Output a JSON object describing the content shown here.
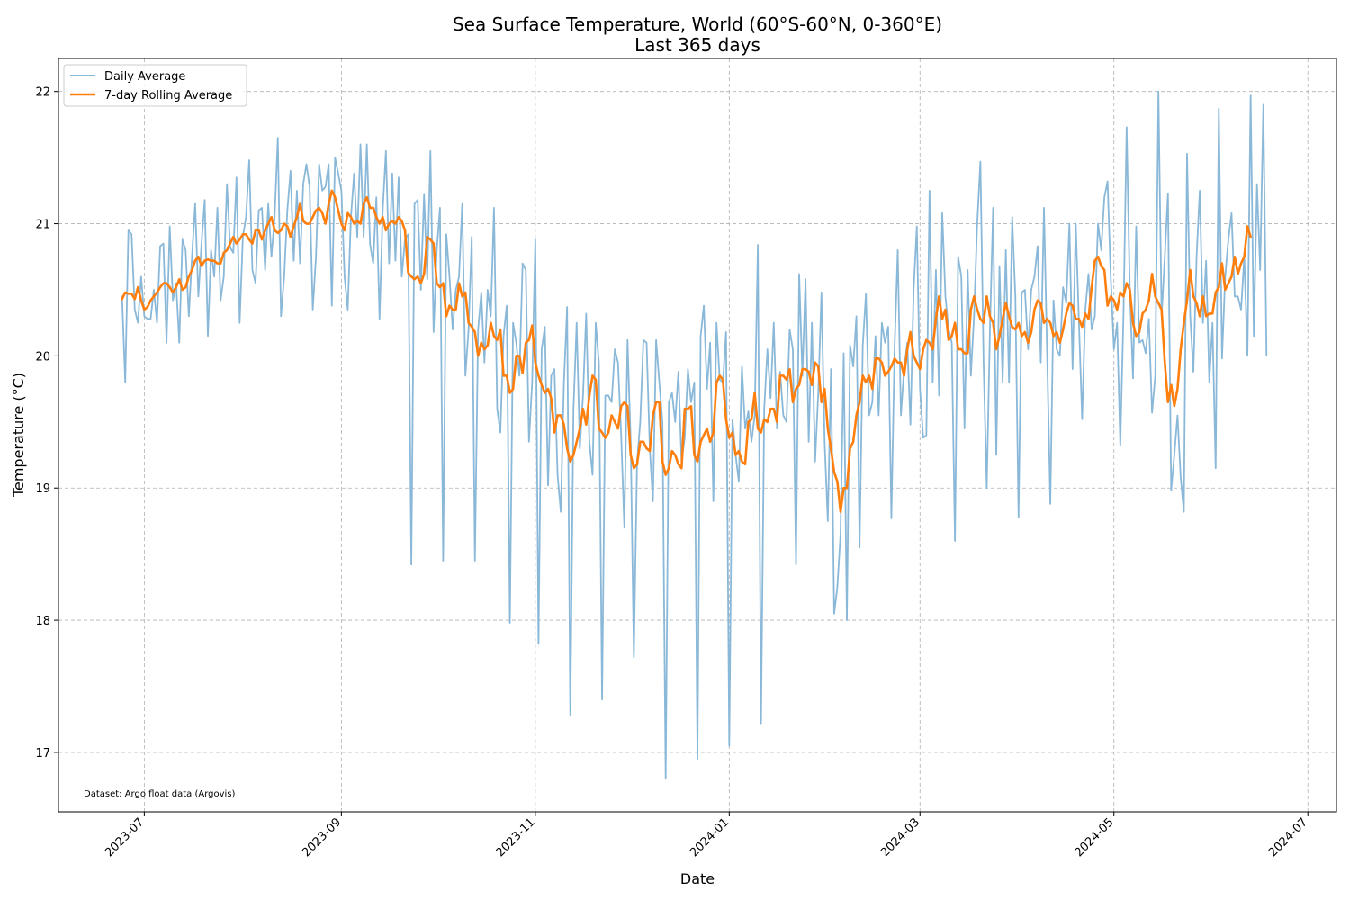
{
  "chart_data": {
    "type": "line",
    "title": "Sea Surface Temperature, World (60°S-60°N, 0-360°E)",
    "subtitle": "Last 365 days",
    "xlabel": "Date",
    "ylabel": "Temperature (°C)",
    "annotation": "Dataset: Argo float data (Argovis)",
    "grid": true,
    "legend_position": "top-left",
    "x_range": [
      "2023-06-04",
      "2024-07-10"
    ],
    "ylim": [
      16.55,
      22.25
    ],
    "y_ticks": [
      17,
      18,
      19,
      20,
      21,
      22
    ],
    "x_ticks": [
      "2023-07-01",
      "2023-09-01",
      "2023-11-01",
      "2024-01-01",
      "2024-03-01",
      "2024-05-01",
      "2024-07-01"
    ],
    "x_tick_labels": [
      "2023-07",
      "2023-09",
      "2023-11",
      "2024-01",
      "2024-03",
      "2024-05",
      "2024-07"
    ],
    "start_date": "2023-06-24",
    "series": [
      {
        "name": "Daily Average",
        "color": "#8ab8d8",
        "values": [
          20.45,
          19.8,
          20.95,
          20.92,
          20.35,
          20.25,
          20.6,
          20.3,
          20.28,
          20.28,
          20.5,
          20.25,
          20.83,
          20.85,
          20.1,
          20.98,
          20.42,
          20.55,
          20.1,
          20.88,
          20.8,
          20.3,
          20.75,
          21.15,
          20.45,
          20.85,
          21.18,
          20.15,
          20.8,
          20.6,
          21.12,
          20.42,
          20.6,
          21.3,
          20.82,
          20.78,
          21.35,
          20.25,
          20.9,
          21.05,
          21.48,
          20.65,
          20.55,
          21.1,
          21.12,
          20.65,
          21.15,
          20.75,
          21.05,
          21.65,
          20.3,
          20.6,
          21.1,
          21.4,
          20.72,
          21.25,
          20.7,
          21.3,
          21.45,
          21.28,
          20.35,
          20.75,
          21.45,
          21.25,
          21.28,
          21.45,
          20.38,
          21.5,
          21.38,
          21.25,
          20.6,
          20.35,
          21.05,
          21.38,
          20.9,
          21.6,
          20.9,
          21.6,
          20.85,
          20.7,
          21.2,
          20.28,
          21.1,
          21.55,
          20.7,
          21.38,
          20.72,
          21.35,
          20.6,
          20.88,
          20.92,
          18.42,
          21.15,
          21.18,
          20.5,
          21.22,
          20.58,
          21.55,
          20.18,
          20.8,
          21.12,
          18.45,
          20.92,
          20.6,
          20.2,
          20.5,
          20.6,
          21.15,
          19.85,
          20.2,
          20.9,
          18.45,
          20.2,
          20.48,
          19.95,
          20.5,
          20.3,
          21.12,
          19.6,
          19.42,
          20.15,
          20.38,
          17.98,
          20.25,
          20.1,
          19.85,
          20.7,
          20.65,
          19.35,
          19.8,
          20.88,
          17.82,
          20.05,
          20.22,
          19.02,
          19.85,
          19.9,
          19.1,
          18.82,
          19.8,
          20.37,
          17.28,
          19.6,
          20.25,
          19.3,
          19.7,
          20.32,
          19.35,
          19.1,
          20.25,
          19.95,
          17.4,
          19.7,
          19.7,
          19.65,
          20.05,
          19.95,
          19.4,
          18.7,
          20.12,
          19.35,
          17.72,
          19.2,
          19.5,
          20.12,
          20.1,
          19.3,
          18.9,
          20.12,
          19.8,
          19.5,
          16.8,
          19.65,
          19.72,
          19.5,
          19.88,
          19.2,
          19.38,
          19.9,
          19.65,
          19.8,
          16.95,
          20.15,
          20.38,
          19.75,
          20.1,
          18.9,
          20.25,
          19.82,
          19.8,
          20.18,
          17.05,
          19.52,
          19.25,
          19.05,
          19.92,
          19.45,
          19.58,
          19.35,
          19.55,
          20.84,
          17.22,
          19.6,
          20.05,
          19.68,
          20.25,
          19.45,
          19.88,
          19.55,
          19.5,
          20.2,
          20.05,
          18.42,
          20.62,
          19.85,
          20.58,
          19.35,
          20.25,
          19.2,
          19.72,
          20.48,
          19.35,
          18.75,
          19.9,
          18.05,
          18.25,
          18.65,
          20.02,
          18.0,
          20.08,
          19.92,
          20.3,
          18.55,
          20.08,
          20.47,
          19.55,
          19.65,
          20.15,
          19.55,
          20.25,
          20.1,
          20.22,
          18.77,
          20.05,
          20.8,
          19.55,
          19.9,
          20.1,
          19.48,
          20.5,
          20.98,
          19.75,
          19.38,
          19.4,
          21.25,
          19.8,
          20.65,
          19.7,
          21.08,
          20.45,
          20.2,
          20.1,
          18.6,
          20.75,
          20.6,
          19.45,
          20.65,
          19.85,
          20.3,
          21.0,
          21.47,
          19.95,
          19.0,
          20.2,
          21.12,
          19.25,
          20.68,
          19.8,
          20.8,
          19.8,
          21.05,
          20.45,
          18.78,
          20.48,
          20.5,
          20.05,
          20.5,
          20.6,
          20.83,
          19.95,
          21.12,
          20.0,
          18.88,
          20.42,
          20.05,
          20.0,
          20.52,
          20.4,
          21.0,
          19.9,
          21.0,
          20.25,
          19.52,
          20.35,
          20.62,
          20.2,
          20.3,
          21.0,
          20.8,
          21.2,
          21.32,
          20.6,
          20.05,
          20.25,
          19.32,
          20.3,
          21.73,
          20.5,
          19.83,
          20.98,
          20.1,
          20.12,
          20.02,
          20.28,
          19.57,
          19.85,
          22.0,
          20.3,
          20.75,
          21.23,
          18.98,
          19.25,
          19.55,
          19.08,
          18.82,
          21.53,
          20.3,
          19.88,
          20.75,
          21.25,
          20.25,
          20.72,
          19.8,
          20.25,
          19.15,
          21.87,
          19.98,
          20.6,
          20.88,
          21.08,
          20.45,
          20.45,
          20.35,
          20.75,
          20.0,
          21.97,
          20.15,
          21.3,
          20.65,
          21.9,
          20.0
        ]
      },
      {
        "name": "7-day Rolling Average",
        "color": "#ff7f0e",
        "values": [
          20.43,
          20.48,
          20.47,
          20.47,
          20.43,
          20.52,
          20.42,
          20.35,
          20.37,
          20.42,
          20.45,
          20.48,
          20.52,
          20.55,
          20.55,
          20.52,
          20.48,
          20.52,
          20.58,
          20.5,
          20.52,
          20.6,
          20.65,
          20.72,
          20.75,
          20.68,
          20.72,
          20.73,
          20.72,
          20.72,
          20.7,
          20.7,
          20.78,
          20.8,
          20.85,
          20.9,
          20.85,
          20.88,
          20.92,
          20.92,
          20.88,
          20.85,
          20.95,
          20.95,
          20.88,
          20.95,
          21.0,
          21.05,
          20.95,
          20.93,
          20.95,
          21.0,
          20.98,
          20.9,
          20.98,
          21.05,
          21.15,
          21.02,
          21.0,
          21.0,
          21.05,
          21.1,
          21.12,
          21.08,
          21.0,
          21.15,
          21.25,
          21.2,
          21.1,
          21.0,
          20.95,
          21.08,
          21.05,
          21.0,
          21.02,
          21.0,
          21.15,
          21.2,
          21.12,
          21.12,
          21.05,
          21.0,
          21.05,
          20.95,
          21.0,
          21.02,
          21.0,
          21.05,
          21.02,
          20.95,
          20.63,
          20.6,
          20.58,
          20.6,
          20.55,
          20.62,
          20.9,
          20.88,
          20.85,
          20.55,
          20.52,
          20.55,
          20.3,
          20.38,
          20.35,
          20.35,
          20.55,
          20.45,
          20.48,
          20.25,
          20.22,
          20.18,
          20.0,
          20.1,
          20.05,
          20.08,
          20.25,
          20.15,
          20.12,
          20.2,
          19.85,
          19.85,
          19.72,
          19.75,
          20.0,
          20.0,
          19.87,
          20.1,
          20.12,
          20.23,
          19.95,
          19.85,
          19.78,
          19.72,
          19.75,
          19.68,
          19.42,
          19.55,
          19.55,
          19.48,
          19.3,
          19.2,
          19.25,
          19.35,
          19.45,
          19.6,
          19.48,
          19.7,
          19.85,
          19.82,
          19.45,
          19.42,
          19.38,
          19.42,
          19.55,
          19.5,
          19.45,
          19.62,
          19.65,
          19.62,
          19.25,
          19.15,
          19.18,
          19.35,
          19.35,
          19.3,
          19.28,
          19.55,
          19.65,
          19.65,
          19.2,
          19.1,
          19.15,
          19.28,
          19.25,
          19.18,
          19.15,
          19.6,
          19.6,
          19.62,
          19.25,
          19.2,
          19.35,
          19.4,
          19.45,
          19.35,
          19.42,
          19.8,
          19.85,
          19.82,
          19.52,
          19.38,
          19.42,
          19.25,
          19.28,
          19.2,
          19.18,
          19.5,
          19.52,
          19.72,
          19.45,
          19.42,
          19.52,
          19.5,
          19.6,
          19.6,
          19.5,
          19.85,
          19.85,
          19.82,
          19.9,
          19.65,
          19.75,
          19.78,
          19.9,
          19.9,
          19.88,
          19.78,
          19.95,
          19.92,
          19.65,
          19.75,
          19.45,
          19.3,
          19.12,
          19.05,
          18.82,
          19.0,
          19.0,
          19.3,
          19.35,
          19.55,
          19.65,
          19.85,
          19.8,
          19.85,
          19.75,
          19.98,
          19.98,
          19.95,
          19.85,
          19.88,
          19.92,
          19.98,
          19.95,
          19.95,
          19.85,
          20.05,
          20.18,
          20.0,
          19.95,
          19.9,
          20.05,
          20.12,
          20.1,
          20.05,
          20.28,
          20.45,
          20.28,
          20.35,
          20.12,
          20.15,
          20.25,
          20.05,
          20.05,
          20.02,
          20.02,
          20.35,
          20.45,
          20.35,
          20.28,
          20.25,
          20.45,
          20.3,
          20.25,
          20.05,
          20.15,
          20.28,
          20.4,
          20.3,
          20.22,
          20.2,
          20.25,
          20.15,
          20.18,
          20.1,
          20.18,
          20.35,
          20.42,
          20.4,
          20.25,
          20.28,
          20.25,
          20.15,
          20.18,
          20.1,
          20.2,
          20.32,
          20.4,
          20.38,
          20.28,
          20.28,
          20.22,
          20.32,
          20.28,
          20.52,
          20.72,
          20.75,
          20.68,
          20.65,
          20.38,
          20.45,
          20.42,
          20.35,
          20.48,
          20.45,
          20.55,
          20.5,
          20.25,
          20.15,
          20.18,
          20.32,
          20.35,
          20.42,
          20.62,
          20.45,
          20.4,
          20.35,
          19.95,
          19.65,
          19.78,
          19.62,
          19.75,
          20.05,
          20.25,
          20.42,
          20.65,
          20.45,
          20.4,
          20.3,
          20.45,
          20.3,
          20.32,
          20.32,
          20.48,
          20.52,
          20.7,
          20.5,
          20.55,
          20.6,
          20.75,
          20.62,
          20.7,
          20.75,
          20.98,
          20.9
        ]
      }
    ]
  }
}
